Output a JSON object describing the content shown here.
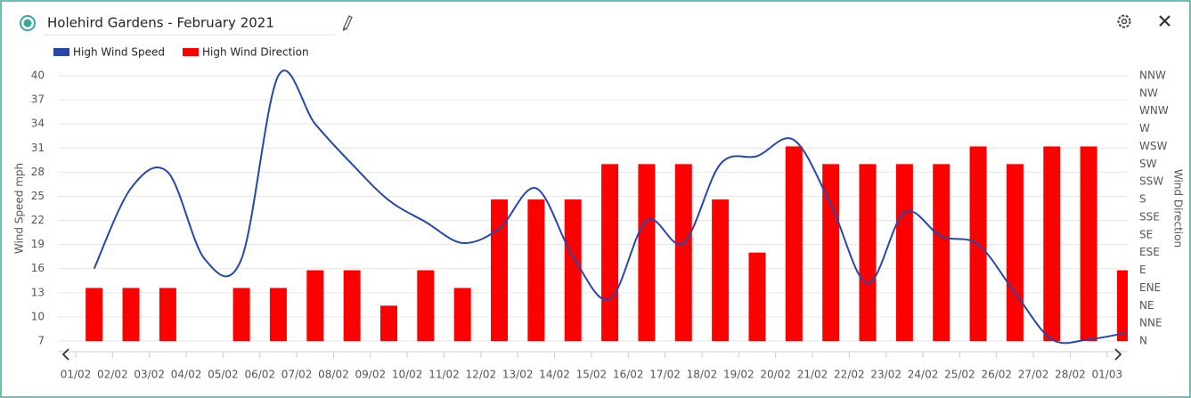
{
  "header": {
    "title": "Holehird Gardens - February 2021"
  },
  "chart_data": {
    "type": "combo",
    "categories": [
      "01/02",
      "02/02",
      "03/02",
      "04/02",
      "05/02",
      "06/02",
      "07/02",
      "08/02",
      "09/02",
      "10/02",
      "11/02",
      "12/02",
      "13/02",
      "14/02",
      "15/02",
      "16/02",
      "17/02",
      "18/02",
      "19/02",
      "20/02",
      "21/02",
      "22/02",
      "23/02",
      "24/02",
      "25/02",
      "26/02",
      "27/02",
      "28/02",
      "01/03"
    ],
    "y_label": "Wind Speed mph",
    "y2_label": "Wind Direction",
    "ylim": [
      7,
      40
    ],
    "yticks": [
      7,
      10,
      13,
      16,
      19,
      22,
      25,
      28,
      31,
      34,
      37,
      40
    ],
    "y2lim": [
      0,
      337.5
    ],
    "y2ticks": [
      {
        "value": 0,
        "label": "N"
      },
      {
        "value": 22.5,
        "label": "NNE"
      },
      {
        "value": 45,
        "label": "NE"
      },
      {
        "value": 67.5,
        "label": "ENE"
      },
      {
        "value": 90,
        "label": "E"
      },
      {
        "value": 112.5,
        "label": "ESE"
      },
      {
        "value": 135,
        "label": "SE"
      },
      {
        "value": 157.5,
        "label": "SSE"
      },
      {
        "value": 180,
        "label": "S"
      },
      {
        "value": 202.5,
        "label": "SSW"
      },
      {
        "value": 225,
        "label": "SW"
      },
      {
        "value": 247.5,
        "label": "WSW"
      },
      {
        "value": 270,
        "label": "W"
      },
      {
        "value": 292.5,
        "label": "WNW"
      },
      {
        "value": 315,
        "label": "NW"
      },
      {
        "value": 337.5,
        "label": "NNW"
      }
    ],
    "grid": true,
    "series": [
      {
        "name": "High Wind Speed",
        "type": "line",
        "color": "#2548a8",
        "values": [
          16,
          26,
          28,
          17.2,
          17.2,
          40,
          34,
          29,
          24.5,
          21.8,
          19.2,
          21,
          26,
          17.5,
          12.2,
          22,
          19.2,
          29,
          30,
          32,
          24,
          14.2,
          23,
          20,
          19,
          13,
          7.2,
          7.2,
          8
        ]
      },
      {
        "name": "High Wind Direction",
        "type": "bar",
        "axis": "y2",
        "color": "#ff0000",
        "values": [
          67.5,
          67.5,
          67.5,
          0,
          67.5,
          67.5,
          90,
          90,
          45,
          90,
          67.5,
          180,
          180,
          180,
          225,
          225,
          225,
          180,
          112.5,
          247.5,
          225,
          225,
          225,
          225,
          247.5,
          225,
          247.5,
          247.5,
          90
        ]
      }
    ]
  }
}
